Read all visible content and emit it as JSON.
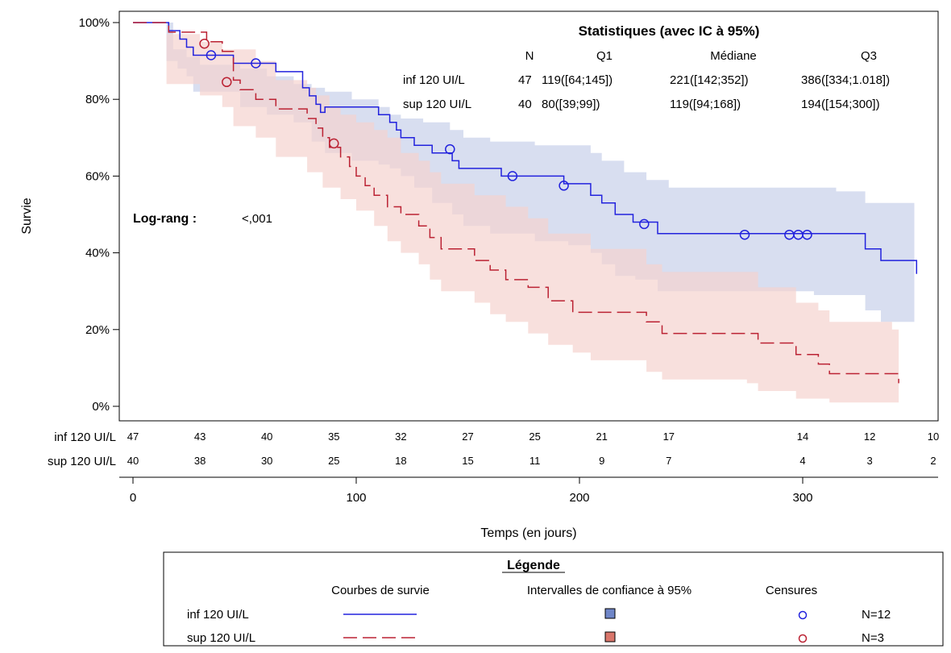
{
  "chart_data": {
    "type": "line",
    "subtype": "kaplan-meier",
    "xlabel": "Temps (en jours)",
    "ylabel": "Survie",
    "xlim": [
      0,
      350
    ],
    "ylim": [
      0,
      1
    ],
    "xticks": [
      0,
      100,
      200,
      300
    ],
    "yticks": [
      {
        "v": 1.0,
        "label": "100%"
      },
      {
        "v": 0.8,
        "label": "80%"
      },
      {
        "v": 0.6,
        "label": "60%"
      },
      {
        "v": 0.4,
        "label": "40%"
      },
      {
        "v": 0.2,
        "label": "20%"
      },
      {
        "v": 0.0,
        "label": "0%"
      }
    ],
    "series": [
      {
        "name": "inf 120 UI/L",
        "color": "#2222dd",
        "band_color": "#c8d0ea",
        "dash": "solid",
        "steps": [
          [
            0,
            1.0
          ],
          [
            15,
            1.0
          ],
          [
            16,
            0.979
          ],
          [
            21,
            0.957
          ],
          [
            24,
            0.936
          ],
          [
            27,
            0.915
          ],
          [
            45,
            0.894
          ],
          [
            54,
            0.894
          ],
          [
            64,
            0.872
          ],
          [
            76,
            0.83
          ],
          [
            79,
            0.809
          ],
          [
            82,
            0.787
          ],
          [
            84,
            0.766
          ],
          [
            86,
            0.78
          ],
          [
            98,
            0.78
          ],
          [
            110,
            0.76
          ],
          [
            115,
            0.74
          ],
          [
            118,
            0.72
          ],
          [
            120,
            0.7
          ],
          [
            126,
            0.68
          ],
          [
            134,
            0.66
          ],
          [
            143,
            0.64
          ],
          [
            146,
            0.62
          ],
          [
            158,
            0.62
          ],
          [
            165,
            0.6
          ],
          [
            178,
            0.6
          ],
          [
            193,
            0.58
          ],
          [
            205,
            0.55
          ],
          [
            210,
            0.53
          ],
          [
            216,
            0.5
          ],
          [
            224,
            0.48
          ],
          [
            235,
            0.45
          ],
          [
            305,
            0.45
          ],
          [
            328,
            0.41
          ],
          [
            335,
            0.38
          ],
          [
            350,
            0.38
          ],
          [
            351,
            0.345
          ]
        ],
        "upper": [
          [
            0,
            1.0
          ],
          [
            15,
            1.0
          ],
          [
            18,
            0.93
          ],
          [
            24,
            0.91
          ],
          [
            30,
            0.89
          ],
          [
            48,
            0.88
          ],
          [
            60,
            0.86
          ],
          [
            72,
            0.84
          ],
          [
            80,
            0.83
          ],
          [
            86,
            0.82
          ],
          [
            98,
            0.8
          ],
          [
            110,
            0.78
          ],
          [
            115,
            0.76
          ],
          [
            120,
            0.75
          ],
          [
            130,
            0.74
          ],
          [
            142,
            0.72
          ],
          [
            148,
            0.7
          ],
          [
            160,
            0.69
          ],
          [
            180,
            0.68
          ],
          [
            205,
            0.66
          ],
          [
            210,
            0.64
          ],
          [
            220,
            0.61
          ],
          [
            230,
            0.59
          ],
          [
            240,
            0.57
          ],
          [
            300,
            0.57
          ],
          [
            315,
            0.56
          ],
          [
            328,
            0.53
          ],
          [
            350,
            0.48
          ]
        ],
        "lower": [
          [
            0,
            1.0
          ],
          [
            15,
            0.9
          ],
          [
            20,
            0.88
          ],
          [
            24,
            0.86
          ],
          [
            27,
            0.82
          ],
          [
            48,
            0.78
          ],
          [
            60,
            0.76
          ],
          [
            72,
            0.74
          ],
          [
            80,
            0.69
          ],
          [
            86,
            0.66
          ],
          [
            98,
            0.64
          ],
          [
            110,
            0.63
          ],
          [
            115,
            0.62
          ],
          [
            120,
            0.6
          ],
          [
            126,
            0.57
          ],
          [
            134,
            0.53
          ],
          [
            143,
            0.5
          ],
          [
            148,
            0.47
          ],
          [
            160,
            0.45
          ],
          [
            180,
            0.43
          ],
          [
            195,
            0.42
          ],
          [
            205,
            0.4
          ],
          [
            210,
            0.37
          ],
          [
            216,
            0.34
          ],
          [
            225,
            0.33
          ],
          [
            235,
            0.3
          ],
          [
            305,
            0.29
          ],
          [
            328,
            0.25
          ],
          [
            335,
            0.22
          ],
          [
            350,
            0.2
          ]
        ],
        "censors": [
          [
            35,
            0.915
          ],
          [
            55,
            0.894
          ],
          [
            142,
            0.67
          ],
          [
            170,
            0.6
          ],
          [
            193,
            0.575
          ],
          [
            229,
            0.475
          ],
          [
            274,
            0.447
          ],
          [
            294,
            0.447
          ],
          [
            298,
            0.447
          ],
          [
            302,
            0.447
          ]
        ]
      },
      {
        "name": "sup 120 UI/L",
        "color": "#bb2233",
        "band_color": "#f5d3cf",
        "dash": "dashed",
        "steps": [
          [
            0,
            1.0
          ],
          [
            15,
            1.0
          ],
          [
            16,
            0.975
          ],
          [
            30,
            0.975
          ],
          [
            33,
            0.95
          ],
          [
            40,
            0.925
          ],
          [
            45,
            0.85
          ],
          [
            48,
            0.825
          ],
          [
            55,
            0.8
          ],
          [
            64,
            0.775
          ],
          [
            78,
            0.75
          ],
          [
            82,
            0.725
          ],
          [
            85,
            0.7
          ],
          [
            88,
            0.675
          ],
          [
            93,
            0.65
          ],
          [
            97,
            0.625
          ],
          [
            100,
            0.6
          ],
          [
            104,
            0.575
          ],
          [
            108,
            0.55
          ],
          [
            114,
            0.52
          ],
          [
            120,
            0.5
          ],
          [
            128,
            0.47
          ],
          [
            133,
            0.44
          ],
          [
            138,
            0.41
          ],
          [
            153,
            0.38
          ],
          [
            160,
            0.355
          ],
          [
            167,
            0.33
          ],
          [
            177,
            0.31
          ],
          [
            186,
            0.275
          ],
          [
            197,
            0.245
          ],
          [
            205,
            0.245
          ],
          [
            230,
            0.22
          ],
          [
            237,
            0.19
          ],
          [
            275,
            0.19
          ],
          [
            280,
            0.165
          ],
          [
            297,
            0.135
          ],
          [
            307,
            0.11
          ],
          [
            312,
            0.085
          ],
          [
            330,
            0.085
          ],
          [
            340,
            0.085
          ],
          [
            343,
            0.06
          ]
        ],
        "upper": [
          [
            0,
            1.0
          ],
          [
            15,
            0.97
          ],
          [
            30,
            0.95
          ],
          [
            40,
            0.93
          ],
          [
            55,
            0.9
          ],
          [
            64,
            0.85
          ],
          [
            78,
            0.83
          ],
          [
            82,
            0.81
          ],
          [
            88,
            0.78
          ],
          [
            93,
            0.76
          ],
          [
            100,
            0.74
          ],
          [
            108,
            0.72
          ],
          [
            114,
            0.7
          ],
          [
            120,
            0.66
          ],
          [
            128,
            0.64
          ],
          [
            133,
            0.61
          ],
          [
            138,
            0.58
          ],
          [
            153,
            0.55
          ],
          [
            167,
            0.52
          ],
          [
            177,
            0.49
          ],
          [
            186,
            0.45
          ],
          [
            205,
            0.41
          ],
          [
            230,
            0.37
          ],
          [
            237,
            0.35
          ],
          [
            275,
            0.35
          ],
          [
            280,
            0.31
          ],
          [
            297,
            0.27
          ],
          [
            307,
            0.25
          ],
          [
            312,
            0.22
          ],
          [
            340,
            0.2
          ],
          [
            343,
            0.2
          ]
        ],
        "lower": [
          [
            0,
            1.0
          ],
          [
            15,
            0.84
          ],
          [
            30,
            0.81
          ],
          [
            40,
            0.78
          ],
          [
            45,
            0.73
          ],
          [
            55,
            0.7
          ],
          [
            64,
            0.65
          ],
          [
            78,
            0.61
          ],
          [
            85,
            0.57
          ],
          [
            93,
            0.54
          ],
          [
            100,
            0.51
          ],
          [
            108,
            0.47
          ],
          [
            114,
            0.43
          ],
          [
            120,
            0.4
          ],
          [
            128,
            0.37
          ],
          [
            133,
            0.33
          ],
          [
            138,
            0.3
          ],
          [
            153,
            0.27
          ],
          [
            160,
            0.24
          ],
          [
            167,
            0.22
          ],
          [
            177,
            0.19
          ],
          [
            186,
            0.16
          ],
          [
            197,
            0.14
          ],
          [
            205,
            0.12
          ],
          [
            230,
            0.09
          ],
          [
            237,
            0.07
          ],
          [
            275,
            0.06
          ],
          [
            280,
            0.04
          ],
          [
            297,
            0.02
          ],
          [
            312,
            0.01
          ],
          [
            343,
            0.01
          ]
        ],
        "censors": [
          [
            32,
            0.945
          ],
          [
            42,
            0.845
          ],
          [
            90,
            0.685
          ]
        ]
      }
    ],
    "stats_table": {
      "title": "Statistiques (avec IC à 95%)",
      "headers": [
        "N",
        "Q1",
        "Médiane",
        "Q3"
      ],
      "rows": [
        {
          "label": "inf 120 UI/L",
          "n": "47",
          "q1": "119([64;145])",
          "median": "221([142;352])",
          "q3": "386([334;1.018])"
        },
        {
          "label": "sup 120 UI/L",
          "n": "40",
          "q1": "80([39;99])",
          "median": "119([94;168])",
          "q3": "194([154;300])"
        }
      ]
    },
    "logrank": {
      "label": "Log-rang :",
      "value": "<,001"
    },
    "at_risk": {
      "times": [
        0,
        30,
        60,
        90,
        120,
        150,
        180,
        210,
        240,
        300,
        330,
        360
      ],
      "rows": [
        {
          "label": "inf 120 UI/L",
          "values": [
            "47",
            "43",
            "40",
            "35",
            "32",
            "27",
            "25",
            "21",
            "17",
            "14",
            "12",
            "10"
          ]
        },
        {
          "label": "sup 120 UI/L",
          "values": [
            "40",
            "38",
            "30",
            "25",
            "18",
            "15",
            "11",
            "9",
            "7",
            "4",
            "3",
            "2"
          ]
        }
      ]
    },
    "legend": {
      "title": "Légende",
      "col_curves": "Courbes de survie",
      "col_ci": "Intervalles de confiance à 95%",
      "col_censor": "Censures",
      "rows": [
        {
          "label": "inf 120 UI/L",
          "censor_count": "N=12"
        },
        {
          "label": "sup 120 UI/L",
          "censor_count": "N=3"
        }
      ]
    }
  }
}
